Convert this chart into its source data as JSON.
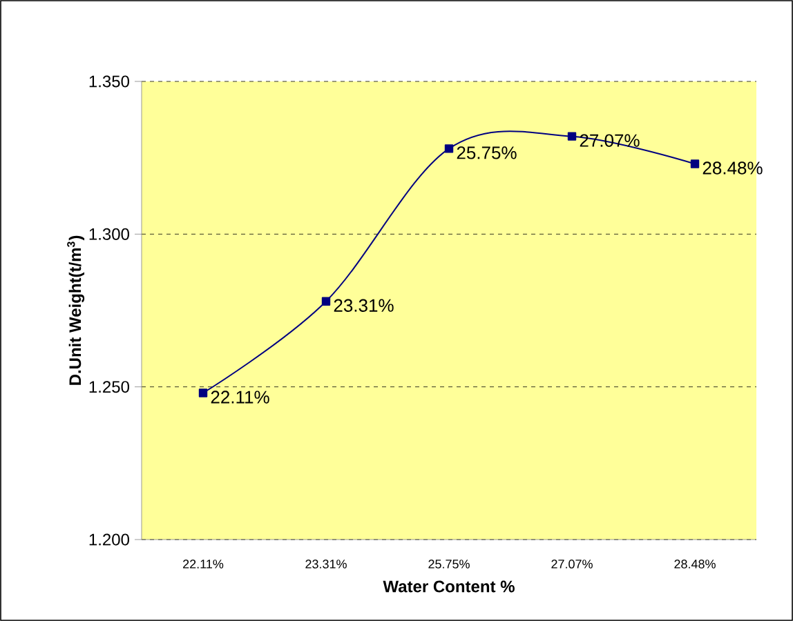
{
  "chart_data": {
    "type": "line",
    "xlabel": "Water Content %",
    "ylabel": "D.Unit Weight(t/m$^{3}$)",
    "categories": [
      "22.11%",
      "23.31%",
      "25.75%",
      "27.07%",
      "28.48%"
    ],
    "series": [
      {
        "color": "#000080",
        "values": [
          1.248,
          1.278,
          1.328,
          1.332,
          1.323
        ]
      }
    ],
    "annotations": [
      {
        "text": "22.11%",
        "x": "22.11%",
        "y": 1.248
      },
      {
        "text": "23.31%",
        "x": "23.31%",
        "y": 1.278
      },
      {
        "text": "25.75%",
        "x": "25.75%",
        "y": 1.328
      },
      {
        "text": "27.07%",
        "x": "27.07%",
        "y": 1.332
      },
      {
        "text": "28.48%",
        "x": "28.48%",
        "y": 1.323
      }
    ],
    "ylim": [
      1.2,
      1.35
    ],
    "yticks": [
      {
        "value": 1.2,
        "label": "1.200"
      },
      {
        "value": 1.25,
        "label": "1.250"
      },
      {
        "value": 1.3,
        "label": "1.300"
      },
      {
        "value": 1.35,
        "label": "1.350"
      }
    ],
    "grid": "y",
    "marker": "square",
    "line_style": "solid"
  }
}
